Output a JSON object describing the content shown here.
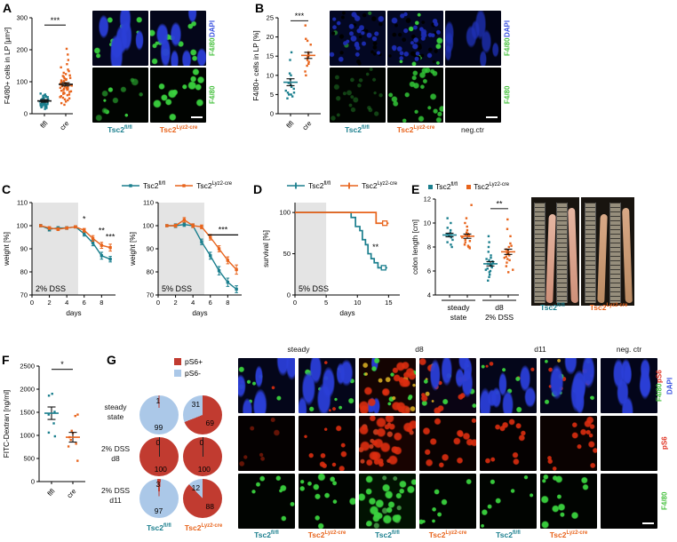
{
  "figure": {
    "bg": "#ffffff"
  },
  "palette": {
    "teal": "#1b7f8e",
    "orange": "#e8641c",
    "pie_red": "#c13b30",
    "pie_blue": "#abc8e8",
    "band_gray": "#e4e4e4",
    "axis": "#000000",
    "label_green": "#45c03d",
    "label_blue": "#3a52e0",
    "label_red": "#e03222",
    "neg_black": "#1a1a1a"
  },
  "groups": {
    "flfl": {
      "base": "Tsc2",
      "sup": "fl/fl"
    },
    "cre": {
      "base": "Tsc2",
      "sup": "Lyz2-cre"
    }
  },
  "panels": {
    "A": {
      "letter": "A",
      "images": {
        "col_labels": [
          "flfl",
          "cre"
        ],
        "row_labels": [
          [
            [
              "F4/80 ",
              "label_green"
            ],
            [
              "DAPI",
              "label_blue"
            ]
          ],
          [
            [
              "F4/80",
              "label_green"
            ]
          ]
        ],
        "tiles": [
          [
            "aM1",
            "aM2"
          ],
          [
            "aG1",
            "aG2"
          ]
        ],
        "scalebar": [
          1,
          1
        ]
      }
    },
    "B": {
      "letter": "B",
      "images": {
        "col_labels": [
          "flfl",
          "cre"
        ],
        "neg_label": "neg.ctr",
        "row_labels": [
          [
            [
              "F4/80 ",
              "label_green"
            ],
            [
              "DAPI",
              "label_blue"
            ]
          ],
          [
            [
              "F4/80",
              "label_green"
            ]
          ]
        ],
        "tiles": [
          [
            "bM1",
            "bM2",
            "bBlue"
          ],
          [
            "bG1",
            "bG2",
            "black"
          ]
        ],
        "scalebar": [
          1,
          2
        ]
      }
    },
    "C": {
      "letter": "C"
    },
    "D": {
      "letter": "D"
    },
    "E": {
      "letter": "E",
      "photo_labels": [
        "flfl",
        "cre"
      ]
    },
    "F": {
      "letter": "F"
    },
    "G": {
      "letter": "G",
      "pie_legend": [
        {
          "label": "pS6+",
          "color": "pie_red"
        },
        {
          "label": "pS6-",
          "color": "pie_blue"
        }
      ],
      "pie_col_labels": [
        "flfl",
        "cre"
      ],
      "img_headers": [
        "steady",
        "d8",
        "d11",
        "neg. ctr"
      ],
      "img_col_labels": [
        "flfl",
        "cre",
        "flfl",
        "cre",
        "flfl",
        "cre"
      ],
      "img_row_labels": [
        [
          [
            "F4/80 ",
            "label_green"
          ],
          [
            "pS6",
            "label_red"
          ]
        ],
        [
          [
            "pS6",
            "label_red"
          ]
        ],
        [
          [
            "F4/80",
            "label_green"
          ]
        ]
      ],
      "img_row1_extra": [
        [
          "DAPI",
          "label_blue"
        ]
      ],
      "tiles": [
        [
          "gM1",
          "gM2",
          "gD8a",
          "gD8b",
          "gD11a",
          "gD11b",
          "gBlue"
        ],
        [
          "rF",
          "rS",
          "rD",
          "rM",
          "rS",
          "rM",
          "black"
        ],
        [
          "gS",
          "gMd",
          "gDn",
          "gS",
          "gS",
          "gMd",
          "black"
        ]
      ],
      "scalebar": [
        2,
        6
      ]
    }
  },
  "chart_data": [
    {
      "id": "A",
      "type": "scatter",
      "ylabel": "F4/80+ cells in LP [µm²]",
      "ylim": [
        0,
        300
      ],
      "yticks": [
        0,
        100,
        200,
        300
      ],
      "sig": {
        "text": "***",
        "y": 277,
        "between": [
          0,
          1
        ]
      },
      "groups": [
        {
          "group": "flfl",
          "mean": 40,
          "sem": 4,
          "values": [
            15,
            18,
            20,
            22,
            23,
            24,
            25,
            26,
            27,
            28,
            28,
            29,
            30,
            30,
            31,
            32,
            32,
            33,
            34,
            35,
            35,
            36,
            36,
            37,
            38,
            38,
            39,
            40,
            40,
            41,
            42,
            43,
            44,
            45,
            46,
            47,
            48,
            50,
            52,
            53,
            55,
            56,
            58,
            60,
            63
          ]
        },
        {
          "group": "cre",
          "mean": 92,
          "sem": 5,
          "values": [
            28,
            33,
            38,
            42,
            45,
            48,
            50,
            52,
            55,
            58,
            60,
            62,
            64,
            66,
            68,
            70,
            72,
            74,
            75,
            76,
            78,
            80,
            81,
            82,
            84,
            85,
            86,
            88,
            89,
            90,
            91,
            92,
            94,
            95,
            96,
            98,
            100,
            102,
            104,
            106,
            108,
            110,
            112,
            115,
            118,
            120,
            124,
            128,
            133,
            138,
            145,
            155,
            168,
            185,
            203
          ]
        }
      ]
    },
    {
      "id": "B",
      "type": "scatter",
      "ylabel": "F4/80+ cells in LP [%]",
      "ylim": [
        0,
        25
      ],
      "yticks": [
        0,
        5,
        10,
        15,
        20,
        25
      ],
      "sig": {
        "text": "***",
        "y": 24.2,
        "between": [
          0,
          1
        ]
      },
      "groups": [
        {
          "group": "flfl",
          "mean": 8.2,
          "sem": 0.9,
          "values": [
            4,
            4.5,
            5,
            5,
            5.5,
            5.5,
            6,
            6.5,
            7,
            7.5,
            8,
            9,
            10,
            10.5,
            14,
            16
          ]
        },
        {
          "group": "cre",
          "mean": 15.2,
          "sem": 0.8,
          "values": [
            10,
            11,
            12.5,
            13,
            13.5,
            14,
            14.5,
            15,
            15,
            15.5,
            16,
            18,
            19,
            19.5,
            23
          ]
        }
      ]
    },
    {
      "id": "C1",
      "type": "line",
      "title_inside": "2% DSS",
      "xlabel": "days",
      "ylabel": "weight [%]",
      "ylim": [
        70,
        110
      ],
      "yticks": [
        70,
        80,
        90,
        100,
        110
      ],
      "xlim": [
        0,
        9.6
      ],
      "xticks": [
        0,
        2,
        4,
        6,
        8
      ],
      "band": [
        0,
        5.3
      ],
      "x": [
        1,
        2,
        3,
        4,
        5,
        6,
        7,
        8,
        9
      ],
      "series": [
        {
          "group": "flfl",
          "values": [
            100,
            98.5,
            99,
            99,
            99.5,
            96.5,
            92.5,
            87,
            85.5
          ],
          "err": [
            0.5,
            0.8,
            0.6,
            0.6,
            0.5,
            1,
            1.2,
            1.5,
            1.2
          ]
        },
        {
          "group": "cre",
          "values": [
            100,
            99,
            98.5,
            99,
            99.5,
            98,
            94.5,
            91.5,
            90.5
          ],
          "err": [
            0.4,
            0.6,
            0.6,
            0.5,
            0.5,
            0.8,
            1.2,
            1.3,
            1.5
          ]
        }
      ],
      "stars": [
        {
          "x": 6,
          "y": 101.8,
          "text": "*"
        },
        {
          "x": 8,
          "y": 96.8,
          "text": "**"
        },
        {
          "x": 9,
          "y": 94,
          "text": "***"
        }
      ]
    },
    {
      "id": "C2",
      "type": "line",
      "title_inside": "5% DSS",
      "xlabel": "days",
      "ylabel": "weight [%]",
      "ylim": [
        70,
        110
      ],
      "yticks": [
        70,
        80,
        90,
        100,
        110
      ],
      "xlim": [
        0,
        9.6
      ],
      "xticks": [
        0,
        2,
        4,
        6,
        8
      ],
      "band": [
        0,
        5.3
      ],
      "x": [
        1,
        2,
        3,
        4,
        5,
        6,
        7,
        8,
        9
      ],
      "series": [
        {
          "group": "flfl",
          "values": [
            100,
            100,
            100.5,
            100,
            93,
            87,
            80.5,
            75.5,
            72.5
          ],
          "err": [
            0.4,
            0.8,
            0.8,
            0.8,
            1.2,
            1.5,
            1.8,
            1.8,
            1.5
          ]
        },
        {
          "group": "cre",
          "values": [
            100,
            100,
            102.5,
            100,
            99.5,
            95,
            90,
            85,
            81
          ],
          "err": [
            0.4,
            0.6,
            1,
            0.8,
            0.8,
            1.2,
            1.3,
            1.5,
            2
          ]
        }
      ],
      "star_line": {
        "x1": 5.7,
        "x2": 9.2,
        "y": 96,
        "text": "***"
      }
    },
    {
      "id": "D",
      "type": "survival",
      "title_inside": "5% DSS",
      "xlabel": "days",
      "ylabel": "survival [%]",
      "ylim": [
        0,
        112
      ],
      "yticks": [
        0,
        50,
        100
      ],
      "xlim": [
        0,
        16.8
      ],
      "xticks": [
        0,
        5,
        10,
        15
      ],
      "band": [
        0,
        5
      ],
      "series": [
        {
          "group": "flfl",
          "steps": [
            [
              0,
              100
            ],
            [
              9,
              100
            ],
            [
              9,
              94
            ],
            [
              9.7,
              94
            ],
            [
              9.7,
              83
            ],
            [
              10.4,
              83
            ],
            [
              10.4,
              78
            ],
            [
              10.8,
              78
            ],
            [
              10.8,
              67
            ],
            [
              11.3,
              67
            ],
            [
              11.3,
              61
            ],
            [
              11.7,
              61
            ],
            [
              11.7,
              50
            ],
            [
              12.2,
              50
            ],
            [
              12.2,
              44
            ],
            [
              12.7,
              44
            ],
            [
              12.7,
              39
            ],
            [
              13.3,
              39
            ],
            [
              13.3,
              33
            ],
            [
              14.8,
              33
            ]
          ],
          "censor": [
            [
              14.2,
              33
            ]
          ]
        },
        {
          "group": "cre",
          "steps": [
            [
              0,
              100
            ],
            [
              13,
              100
            ],
            [
              13,
              87
            ],
            [
              15,
              87
            ]
          ],
          "censor": [
            [
              14.4,
              87
            ]
          ]
        }
      ],
      "stars": [
        {
          "x": 12.9,
          "y": 55,
          "text": "**"
        }
      ]
    },
    {
      "id": "E",
      "type": "scatter",
      "ylabel": "colon length [cm]",
      "ylim": [
        4,
        12
      ],
      "yticks": [
        4,
        6,
        8,
        10,
        12
      ],
      "legend": [
        "flfl",
        "cre"
      ],
      "sig": {
        "text": "**",
        "y": 11.2,
        "between": [
          2,
          3
        ]
      },
      "brackets": [
        {
          "cols": [
            0,
            1
          ],
          "lines": [
            "steady",
            "state"
          ]
        },
        {
          "cols": [
            2,
            3
          ],
          "lines": [
            "d8",
            "2% DSS"
          ]
        }
      ],
      "groups": [
        {
          "group": "flfl",
          "mean": 9.0,
          "sem": 0.15,
          "values": [
            8,
            8.2,
            8.4,
            8.6,
            8.8,
            8.9,
            9,
            9,
            9.1,
            9.2,
            9.4,
            9.6,
            10,
            10.4
          ]
        },
        {
          "group": "cre",
          "mean": 8.9,
          "sem": 0.18,
          "values": [
            7.9,
            8,
            8,
            8.1,
            8.2,
            8.4,
            8.5,
            8.6,
            8.8,
            8.9,
            9,
            9,
            9.1,
            9.2,
            9.4,
            9.7,
            10,
            10.4,
            11.5
          ]
        },
        {
          "group": "flfl",
          "mean": 6.6,
          "sem": 0.18,
          "values": [
            5.2,
            5.5,
            5.7,
            5.9,
            6,
            6.1,
            6.2,
            6.3,
            6.4,
            6.5,
            6.5,
            6.6,
            6.7,
            6.8,
            6.9,
            7,
            7.1,
            7.3,
            7.6,
            8,
            8.4,
            8.9
          ]
        },
        {
          "group": "cre",
          "mean": 7.6,
          "sem": 0.22,
          "values": [
            5.9,
            6.1,
            6.4,
            6.7,
            6.9,
            7,
            7.1,
            7.2,
            7.3,
            7.4,
            7.5,
            7.5,
            7.7,
            7.8,
            8,
            8.1,
            8.3,
            8.9,
            9.5,
            10.3
          ]
        }
      ]
    },
    {
      "id": "F",
      "type": "scatter",
      "ylabel": "FITC-Dextran [ng/ml]",
      "ylim": [
        0,
        2500
      ],
      "yticks": [
        0,
        500,
        1000,
        1500,
        2000,
        2500
      ],
      "sig": {
        "text": "*",
        "y": 2430,
        "between": [
          0,
          1
        ]
      },
      "groups": [
        {
          "group": "flfl",
          "mean": 1480,
          "sem": 135,
          "values": [
            1900,
            1860,
            1510,
            1450,
            1260,
            1060,
            980
          ]
        },
        {
          "group": "cre",
          "mean": 960,
          "sem": 105,
          "values": [
            1450,
            1420,
            1100,
            1050,
            960,
            900,
            820,
            760,
            450
          ]
        }
      ]
    },
    {
      "id": "G-pies",
      "type": "pie",
      "rows": [
        {
          "label": [
            "steady",
            "state"
          ],
          "flfl": {
            "pos": 1,
            "neg": 99
          },
          "cre": {
            "pos": 69,
            "neg": 31
          }
        },
        {
          "label": [
            "2% DSS",
            "d8"
          ],
          "flfl": {
            "pos": 100,
            "neg": 0
          },
          "cre": {
            "pos": 100,
            "neg": 0
          }
        },
        {
          "label": [
            "2% DSS",
            "d11"
          ],
          "flfl": {
            "pos": 3,
            "neg": 97
          },
          "cre": {
            "pos": 88,
            "neg": 12
          }
        }
      ]
    }
  ]
}
